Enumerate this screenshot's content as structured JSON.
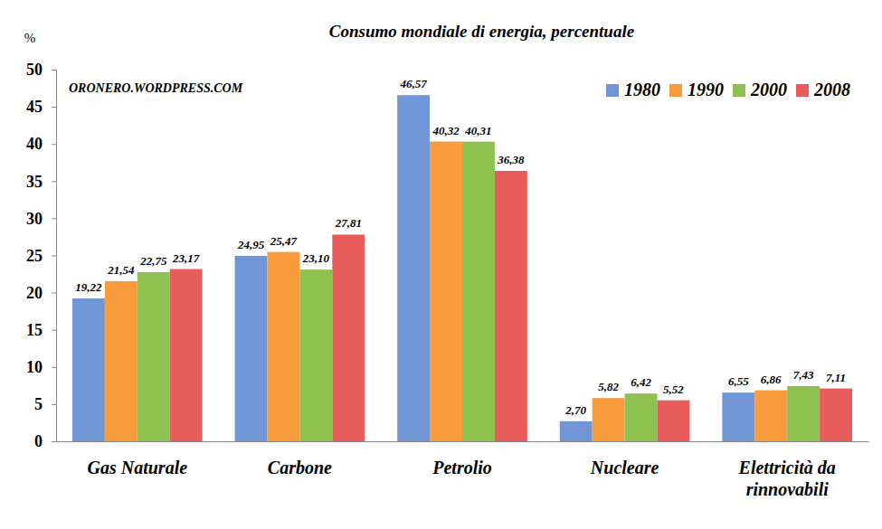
{
  "chart_data": {
    "type": "bar",
    "title": "Consumo mondiale di energia, percentuale",
    "y_label": "%",
    "annotation": "ORONERO.WORDPRESS.COM",
    "categories": [
      "Gas Naturale",
      "Carbone",
      "Petrolio",
      "Nucleare",
      "Elettricità da rinnovabili"
    ],
    "series": [
      {
        "name": "1980",
        "color": "#7096d8",
        "values": [
          19.22,
          24.95,
          46.57,
          2.7,
          6.55
        ],
        "value_labels": [
          "19,22",
          "24,95",
          "46,57",
          "2,70",
          "6,55"
        ]
      },
      {
        "name": "1990",
        "color": "#f79b3c",
        "values": [
          21.54,
          25.47,
          40.32,
          5.82,
          6.86
        ],
        "value_labels": [
          "21,54",
          "25,47",
          "40,32",
          "5,82",
          "6,86"
        ]
      },
      {
        "name": "2000",
        "color": "#8fc151",
        "values": [
          22.75,
          23.1,
          40.31,
          6.42,
          7.43
        ],
        "value_labels": [
          "22,75",
          "23,10",
          "40,31",
          "6,42",
          "7,43"
        ]
      },
      {
        "name": "2008",
        "color": "#e85c5c",
        "values": [
          23.17,
          27.81,
          36.38,
          5.52,
          7.11
        ],
        "value_labels": [
          "23,17",
          "27,81",
          "36,38",
          "5,52",
          "7,11"
        ]
      }
    ],
    "ylim": [
      0,
      50
    ],
    "yticks": [
      0,
      5,
      10,
      15,
      20,
      25,
      30,
      35,
      40,
      45,
      50
    ],
    "grid": false,
    "legend": "top-right",
    "data_labels": true
  }
}
